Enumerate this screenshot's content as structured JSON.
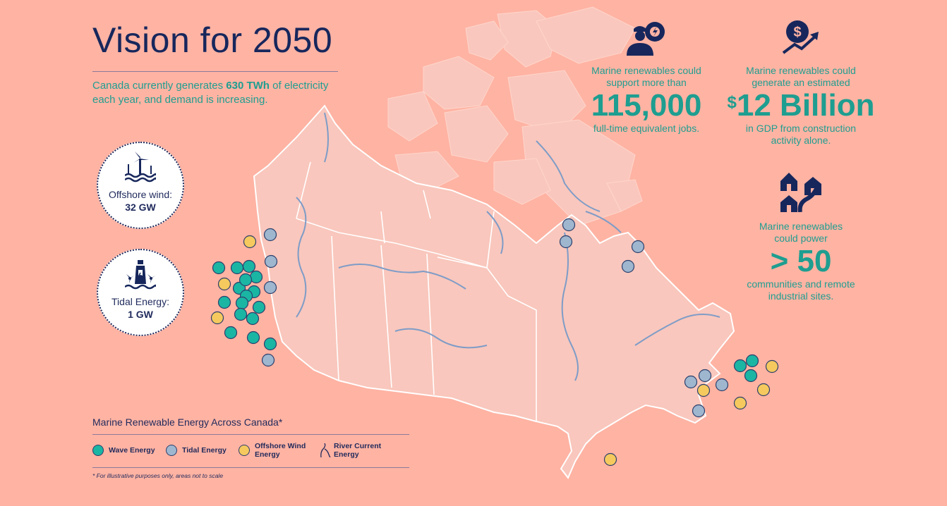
{
  "title": "Vision for 2050",
  "intro": {
    "pre": "Canada currently generates ",
    "bold": "630 TWh",
    "post": " of electricity each year, and demand is increasing."
  },
  "badges": [
    {
      "label": "Offshore wind:",
      "value": "32 GW",
      "icon": "offshore-wind-turbine-icon"
    },
    {
      "label": "Tidal Energy:",
      "value": "1 GW",
      "icon": "tidal-lighthouse-turbine-icon"
    }
  ],
  "stats": {
    "jobs": {
      "pre": "Marine renewables could support more than",
      "big": "115,000",
      "post": "full-time equivalent jobs.",
      "icon": "worker-gear-icon"
    },
    "gdp": {
      "pre": "Marine renewables could generate an estimated",
      "currency": "$",
      "big": "12 Billion",
      "post": "in GDP from construction activity alone.",
      "icon": "dollar-growth-icon"
    },
    "communities": {
      "pre": "Marine renewables could power",
      "big": "> 50",
      "post": "communities and remote industrial sites.",
      "icon": "houses-road-icon"
    }
  },
  "legend": {
    "title": "Marine Renewable Energy Across Canada*",
    "items": [
      {
        "label": "Wave Energy",
        "color": "#1BB5A4"
      },
      {
        "label": "Tidal Energy",
        "color": "#9FB6CF"
      },
      {
        "label": "Offshore Wind Energy",
        "color": "#F5C95E"
      },
      {
        "label": "River Current Energy",
        "color": "#7E9CC7"
      }
    ],
    "footnote": "* For illustrative purposes only, areas not to scale"
  },
  "colors": {
    "background": "#FFB3A3",
    "land": "#F9C7BD",
    "navy": "#17275C",
    "teal": "#1E9E90"
  }
}
